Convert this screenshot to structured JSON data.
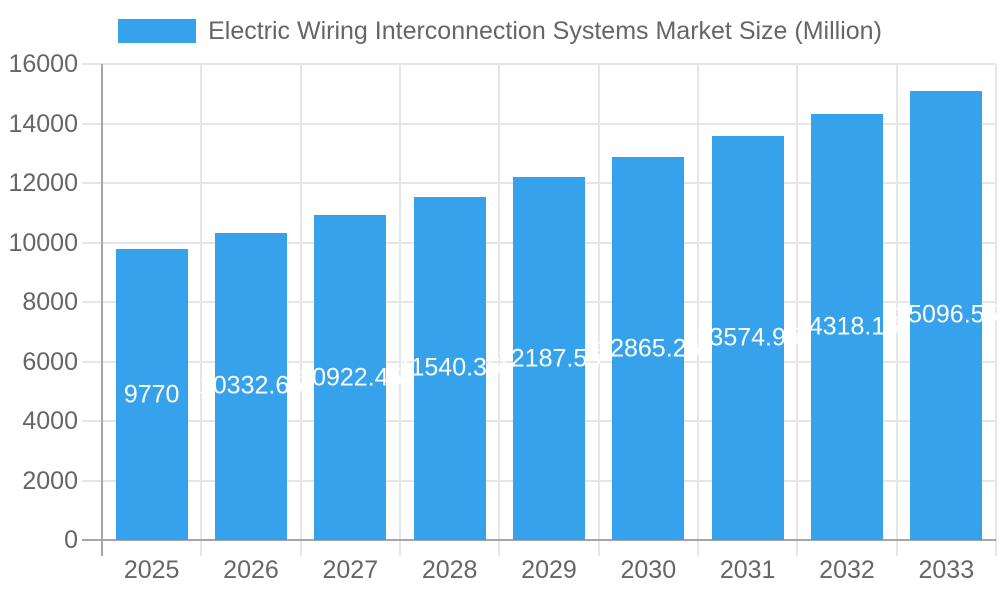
{
  "legend": {
    "label": "Electric Wiring Interconnection Systems Market Size (Million)",
    "swatch_color": "#36A2EB"
  },
  "chart_data": {
    "type": "bar",
    "title": "Electric Wiring Interconnection Systems Market Size (Million)",
    "series_name": "Electric Wiring Interconnection Systems Market Size (Million)",
    "categories": [
      "2025",
      "2026",
      "2027",
      "2028",
      "2029",
      "2030",
      "2031",
      "2032",
      "2033"
    ],
    "values": [
      9770,
      10332.65,
      10922.45,
      11540.35,
      12187.55,
      12865.25,
      13574.95,
      14318.15,
      15096.55
    ],
    "xlabel": "",
    "ylabel": "",
    "ylim": [
      0,
      16000
    ],
    "y_step": 2000,
    "y_tick_labels": [
      "0",
      "2000",
      "4000",
      "6000",
      "8000",
      "10000",
      "12000",
      "14000",
      "16000"
    ],
    "grid": true,
    "legend_position": "top",
    "value_label_position": "inside-center",
    "colors": {
      "bar": "#36A2EB",
      "value_label": "#FFFFFF",
      "axis_text": "#666666",
      "gridline": "#E6E6E6",
      "axis_line": "#A6A6A6",
      "background": "#FFFFFF"
    }
  }
}
